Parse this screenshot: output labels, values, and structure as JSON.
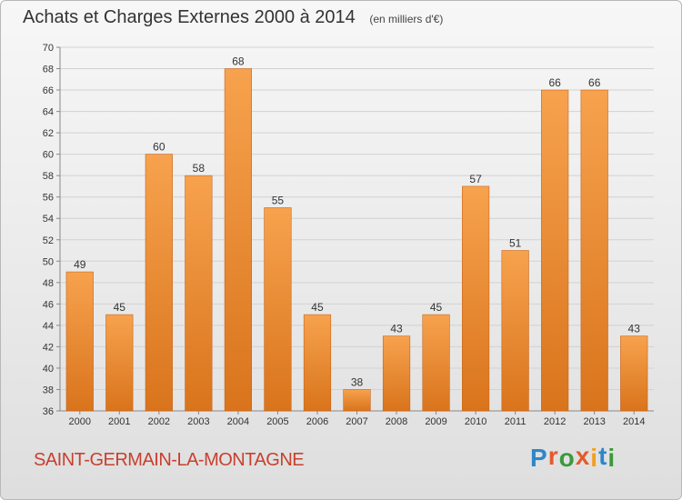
{
  "header": {
    "title": "Achats et Charges Externes 2000 à 2014",
    "unit": "(en milliers d'€)"
  },
  "footer": {
    "location": "SAINT-GERMAIN-LA-MONTAGNE",
    "brand": "Proxiti"
  },
  "colors": {
    "bar_top": "#f7a24e",
    "bar_bottom": "#d9741c",
    "location_text": "#c8402e",
    "logo_letters": [
      "#2e86c9",
      "#e35b2c",
      "#3a9a3a",
      "#e35b2c",
      "#f0a020",
      "#2e86c9",
      "#3a9a3a"
    ]
  },
  "chart_data": {
    "type": "bar",
    "title": "Achats et Charges Externes 2000 à 2014",
    "subtitle": "(en milliers d'€)",
    "categories": [
      "2000",
      "2001",
      "2002",
      "2003",
      "2004",
      "2005",
      "2006",
      "2007",
      "2008",
      "2009",
      "2010",
      "2011",
      "2012",
      "2013",
      "2014"
    ],
    "values": [
      49,
      45,
      60,
      58,
      68,
      55,
      45,
      38,
      43,
      45,
      57,
      51,
      66,
      66,
      43
    ],
    "ylim": [
      36,
      70
    ],
    "yticks": [
      36,
      38,
      40,
      42,
      44,
      46,
      48,
      50,
      52,
      54,
      56,
      58,
      60,
      62,
      64,
      66,
      68,
      70
    ],
    "grid": true,
    "legend": "none"
  }
}
